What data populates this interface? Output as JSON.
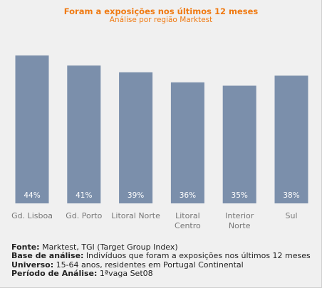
{
  "chart_data": {
    "type": "bar",
    "title": "Foram a exposições nos últimos 12 meses",
    "subtitle": "Análise por região Marktest",
    "categories": [
      [
        "Gd. Lisboa"
      ],
      [
        "Gd. Porto"
      ],
      [
        "Litoral Norte"
      ],
      [
        "Litoral",
        "Centro"
      ],
      [
        "Interior",
        "Norte"
      ],
      [
        "Sul"
      ]
    ],
    "values": [
      44,
      41,
      39,
      36,
      35,
      38
    ],
    "value_labels": [
      "44%",
      "41%",
      "39%",
      "36%",
      "35%",
      "38%"
    ],
    "unit": "%",
    "ylim": [
      0,
      50
    ],
    "bar_color": "#7b8fab",
    "grid": false,
    "legend": "none"
  },
  "notes": [
    {
      "label": "Fonte:",
      "text": " Marktest, TGI (Target Group Index)"
    },
    {
      "label": "Base de análise:",
      "text": " Indivíduos que foram a exposições nos últimos 12 meses"
    },
    {
      "label": "Universo:",
      "text": " 15-64 anos, residentes em Portugal Continental"
    },
    {
      "label": "Período de Análise:",
      "text": " 1ªvaga Set08"
    }
  ],
  "colors": {
    "title": "#f07a12",
    "bar": "#7b8fab",
    "background": "#f0f0f0"
  }
}
